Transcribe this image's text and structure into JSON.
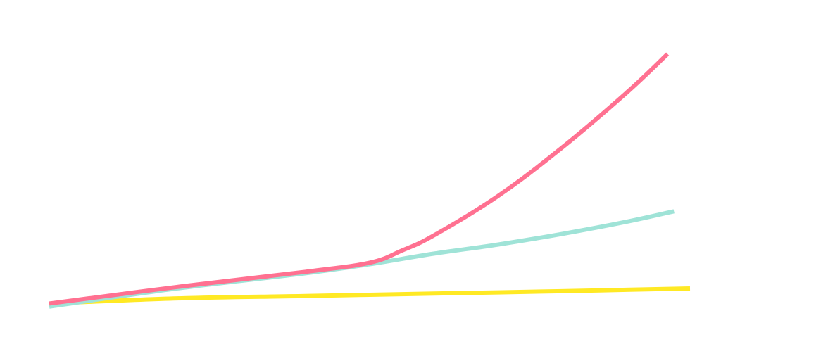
{
  "chart_data": {
    "type": "line",
    "title": "",
    "xlabel": "",
    "ylabel": "",
    "grid": false,
    "xlim": [
      0,
      10
    ],
    "ylim": [
      0,
      100
    ],
    "series": [
      {
        "color": "#FFE924",
        "x": [
          0,
          2,
          4,
          6,
          8,
          10
        ],
        "values": [
          8.5,
          10.2,
          11.0,
          11.8,
          12.6,
          13.5
        ]
      },
      {
        "color": "#9FE3D7",
        "x": [
          0,
          2,
          4,
          5,
          6,
          7,
          8,
          9,
          9.75
        ],
        "values": [
          7.5,
          13.5,
          18.5,
          21.5,
          25.0,
          28.0,
          31.5,
          35.5,
          39.0
        ]
      },
      {
        "color": "#FF7191",
        "x": [
          0,
          2,
          4,
          5,
          5.5,
          6,
          7,
          8,
          9,
          9.65
        ],
        "values": [
          8.5,
          14.0,
          19.0,
          22.0,
          26.0,
          31.0,
          44.0,
          60.0,
          78.0,
          91.0
        ]
      }
    ]
  }
}
